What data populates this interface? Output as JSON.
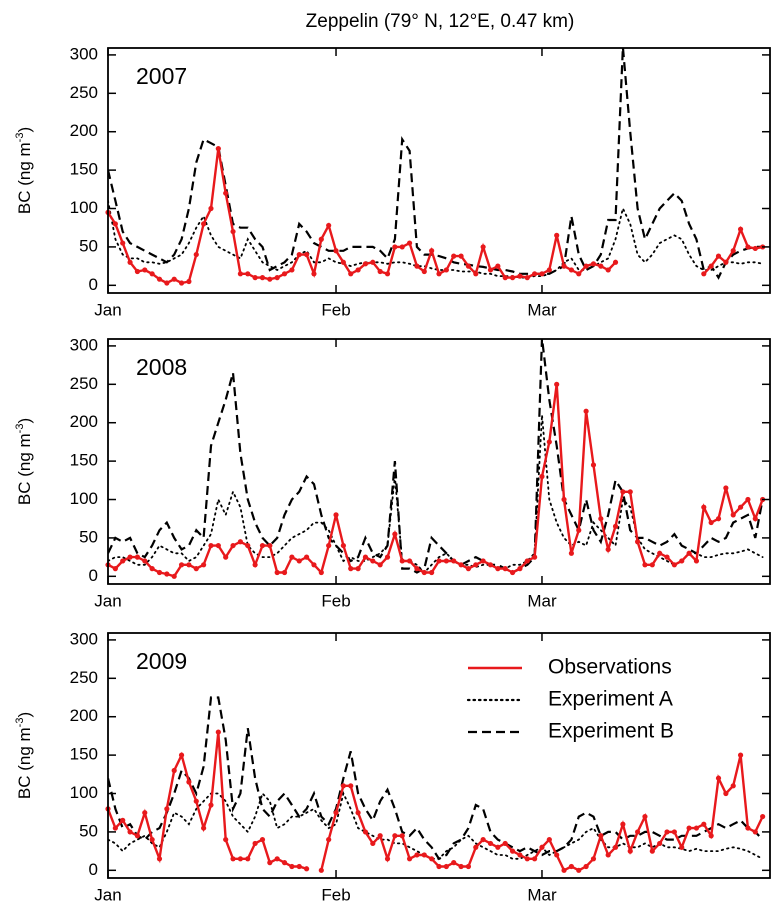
{
  "chart_data": [
    {
      "type": "line",
      "title": "Zeppelin (79° N, 12°E, 0.47 km)",
      "annotation": "2007",
      "ylabel": [
        "BC (ng m",
        "-3",
        ")"
      ],
      "x": [
        0,
        1,
        2,
        3,
        4,
        5,
        6,
        7,
        8,
        9,
        10,
        11,
        12,
        13,
        14,
        15,
        16,
        17,
        18,
        19,
        20,
        21,
        22,
        23,
        24,
        25,
        26,
        27,
        28,
        29,
        30,
        31,
        32,
        33,
        34,
        35,
        36,
        37,
        38,
        39,
        40,
        41,
        42,
        43,
        44,
        45,
        46,
        47,
        48,
        49,
        50,
        51,
        52,
        53,
        54,
        55,
        56,
        57,
        58,
        59,
        60,
        61,
        62,
        63,
        64,
        65,
        66,
        67,
        68,
        69,
        70,
        71,
        72,
        73,
        74,
        75,
        76,
        77,
        78,
        79,
        80,
        81,
        82,
        83,
        84,
        85,
        86,
        87,
        88,
        89
      ],
      "xlim": [
        0,
        90
      ],
      "ylim": [
        -10,
        309
      ],
      "xticks": [
        {
          "value": 0,
          "label": "Jan"
        },
        {
          "value": 31,
          "label": "Feb"
        },
        {
          "value": 59,
          "label": "Mar"
        }
      ],
      "yticks": [
        0,
        50,
        100,
        150,
        200,
        250,
        300
      ],
      "series": [
        {
          "color": "#e8191c",
          "style": "solid",
          "marker": true,
          "values": [
            95,
            80,
            55,
            30,
            18,
            20,
            15,
            8,
            3,
            8,
            3,
            5,
            40,
            80,
            100,
            178,
            120,
            70,
            15,
            15,
            10,
            10,
            8,
            10,
            15,
            20,
            40,
            40,
            15,
            60,
            78,
            45,
            30,
            15,
            20,
            28,
            30,
            18,
            15,
            50,
            50,
            55,
            25,
            18,
            45,
            15,
            20,
            38,
            38,
            25,
            15,
            50,
            20,
            25,
            10,
            10,
            12,
            10,
            15,
            15,
            20,
            65,
            25,
            20,
            15,
            25,
            28,
            25,
            20,
            30,
            null,
            null,
            null,
            null,
            null,
            null,
            null,
            null,
            null,
            null,
            null,
            15,
            25,
            38,
            30,
            45,
            73,
            50,
            48,
            50
          ]
        },
        {
          "color": "#000000",
          "style": "dotted",
          "marker": false,
          "values": [
            110,
            60,
            40,
            35,
            35,
            30,
            30,
            28,
            30,
            35,
            40,
            55,
            75,
            90,
            65,
            50,
            45,
            40,
            35,
            60,
            45,
            30,
            25,
            20,
            25,
            30,
            40,
            45,
            30,
            30,
            35,
            30,
            28,
            25,
            28,
            30,
            30,
            30,
            28,
            30,
            30,
            28,
            25,
            25,
            22,
            20,
            20,
            20,
            18,
            18,
            18,
            15,
            15,
            12,
            12,
            12,
            10,
            10,
            12,
            12,
            15,
            20,
            30,
            35,
            20,
            20,
            25,
            30,
            35,
            60,
            100,
            80,
            40,
            30,
            40,
            55,
            60,
            65,
            60,
            40,
            25,
            20,
            20,
            25,
            30,
            30,
            28,
            30,
            30,
            28
          ]
        },
        {
          "color": "#000000",
          "style": "dashed",
          "marker": false,
          "values": [
            150,
            110,
            70,
            55,
            50,
            45,
            40,
            35,
            30,
            40,
            60,
            100,
            160,
            190,
            185,
            180,
            130,
            80,
            75,
            75,
            60,
            50,
            20,
            25,
            30,
            40,
            80,
            70,
            55,
            50,
            45,
            45,
            45,
            50,
            50,
            50,
            50,
            45,
            35,
            60,
            190,
            175,
            50,
            40,
            40,
            38,
            35,
            30,
            28,
            27,
            25,
            24,
            22,
            20,
            20,
            18,
            15,
            15,
            15,
            15,
            15,
            20,
            25,
            90,
            40,
            20,
            25,
            40,
            85,
            85,
            310,
            200,
            100,
            60,
            80,
            100,
            110,
            120,
            110,
            80,
            60,
            20,
            25,
            10,
            30,
            40,
            45,
            48,
            50,
            50
          ]
        }
      ]
    },
    {
      "type": "line",
      "annotation": "2008",
      "ylabel": [
        "BC (ng m",
        "-3",
        ")"
      ],
      "x": [
        0,
        1,
        2,
        3,
        4,
        5,
        6,
        7,
        8,
        9,
        10,
        11,
        12,
        13,
        14,
        15,
        16,
        17,
        18,
        19,
        20,
        21,
        22,
        23,
        24,
        25,
        26,
        27,
        28,
        29,
        30,
        31,
        32,
        33,
        34,
        35,
        36,
        37,
        38,
        39,
        40,
        41,
        42,
        43,
        44,
        45,
        46,
        47,
        48,
        49,
        50,
        51,
        52,
        53,
        54,
        55,
        56,
        57,
        58,
        59,
        60,
        61,
        62,
        63,
        64,
        65,
        66,
        67,
        68,
        69,
        70,
        71,
        72,
        73,
        74,
        75,
        76,
        77,
        78,
        79,
        80,
        81,
        82,
        83,
        84,
        85,
        86,
        87,
        88,
        89
      ],
      "xlim": [
        0,
        90
      ],
      "ylim": [
        -10,
        309
      ],
      "xticks": [
        {
          "value": 0,
          "label": "Jan"
        },
        {
          "value": 31,
          "label": "Feb"
        },
        {
          "value": 59,
          "label": "Mar"
        }
      ],
      "yticks": [
        0,
        50,
        100,
        150,
        200,
        250,
        300
      ],
      "series": [
        {
          "color": "#e8191c",
          "style": "solid",
          "marker": true,
          "values": [
            15,
            10,
            20,
            25,
            25,
            20,
            10,
            5,
            3,
            0,
            15,
            15,
            10,
            15,
            40,
            40,
            25,
            40,
            45,
            40,
            15,
            40,
            40,
            5,
            5,
            25,
            20,
            25,
            15,
            5,
            40,
            80,
            40,
            10,
            10,
            25,
            20,
            15,
            25,
            55,
            20,
            20,
            10,
            5,
            5,
            20,
            20,
            20,
            15,
            10,
            15,
            20,
            15,
            10,
            10,
            5,
            10,
            20,
            25,
            130,
            175,
            250,
            100,
            30,
            60,
            215,
            145,
            75,
            35,
            65,
            110,
            110,
            45,
            15,
            15,
            30,
            25,
            15,
            20,
            30,
            20,
            90,
            70,
            75,
            115,
            80,
            90,
            100,
            75,
            100
          ]
        },
        {
          "color": "#000000",
          "style": "dotted",
          "marker": false,
          "values": [
            20,
            25,
            25,
            20,
            15,
            15,
            25,
            40,
            35,
            30,
            30,
            20,
            25,
            40,
            55,
            100,
            80,
            110,
            90,
            40,
            30,
            25,
            25,
            30,
            40,
            50,
            55,
            60,
            70,
            70,
            60,
            40,
            20,
            25,
            20,
            20,
            25,
            30,
            40,
            130,
            20,
            20,
            15,
            5,
            15,
            25,
            30,
            20,
            15,
            15,
            12,
            15,
            15,
            12,
            10,
            15,
            15,
            20,
            30,
            210,
            100,
            70,
            50,
            40,
            45,
            40,
            70,
            60,
            50,
            40,
            100,
            90,
            50,
            35,
            30,
            25,
            20,
            15,
            20,
            30,
            30,
            25,
            25,
            28,
            30,
            30,
            32,
            35,
            30,
            25
          ]
        },
        {
          "color": "#000000",
          "style": "dashed",
          "marker": false,
          "values": [
            30,
            50,
            45,
            50,
            30,
            25,
            40,
            60,
            70,
            50,
            35,
            40,
            60,
            50,
            170,
            200,
            230,
            265,
            160,
            100,
            70,
            50,
            40,
            50,
            80,
            100,
            110,
            130,
            120,
            80,
            50,
            40,
            30,
            20,
            25,
            50,
            30,
            25,
            40,
            150,
            10,
            10,
            5,
            10,
            50,
            40,
            30,
            20,
            15,
            20,
            25,
            20,
            15,
            15,
            10,
            5,
            10,
            15,
            25,
            310,
            230,
            170,
            100,
            80,
            60,
            100,
            60,
            45,
            80,
            125,
            110,
            60,
            50,
            50,
            45,
            40,
            45,
            55,
            40,
            35,
            30,
            40,
            50,
            45,
            50,
            70,
            75,
            80,
            50,
            100
          ]
        }
      ]
    },
    {
      "type": "line",
      "annotation": "2009",
      "legend": "upper right",
      "ylabel": [
        "BC (ng m",
        "-3",
        ")"
      ],
      "x": [
        0,
        1,
        2,
        3,
        4,
        5,
        6,
        7,
        8,
        9,
        10,
        11,
        12,
        13,
        14,
        15,
        16,
        17,
        18,
        19,
        20,
        21,
        22,
        23,
        24,
        25,
        26,
        27,
        28,
        29,
        30,
        31,
        32,
        33,
        34,
        35,
        36,
        37,
        38,
        39,
        40,
        41,
        42,
        43,
        44,
        45,
        46,
        47,
        48,
        49,
        50,
        51,
        52,
        53,
        54,
        55,
        56,
        57,
        58,
        59,
        60,
        61,
        62,
        63,
        64,
        65,
        66,
        67,
        68,
        69,
        70,
        71,
        72,
        73,
        74,
        75,
        76,
        77,
        78,
        79,
        80,
        81,
        82,
        83,
        84,
        85,
        86,
        87,
        88,
        89
      ],
      "xlim": [
        0,
        90
      ],
      "ylim": [
        -10,
        309
      ],
      "xticks": [
        {
          "value": 0,
          "label": "Jan"
        },
        {
          "value": 31,
          "label": "Feb"
        },
        {
          "value": 59,
          "label": "Mar"
        }
      ],
      "yticks": [
        0,
        50,
        100,
        150,
        200,
        250,
        300
      ],
      "series": [
        {
          "name": "Observations",
          "color": "#e8191c",
          "style": "solid",
          "marker": true,
          "values": [
            80,
            55,
            65,
            50,
            45,
            75,
            40,
            15,
            80,
            130,
            150,
            115,
            90,
            55,
            85,
            180,
            40,
            15,
            15,
            15,
            35,
            40,
            10,
            15,
            10,
            5,
            5,
            2,
            null,
            0,
            40,
            75,
            110,
            110,
            75,
            50,
            35,
            45,
            15,
            45,
            45,
            15,
            20,
            20,
            15,
            5,
            5,
            10,
            5,
            5,
            30,
            40,
            35,
            30,
            35,
            25,
            20,
            15,
            15,
            30,
            40,
            20,
            0,
            5,
            0,
            5,
            15,
            45,
            20,
            30,
            60,
            25,
            50,
            70,
            25,
            35,
            50,
            50,
            30,
            55,
            55,
            60,
            45,
            120,
            100,
            110,
            150,
            55,
            50,
            70
          ]
        },
        {
          "name": "Experiment A",
          "color": "#000000",
          "style": "dotted",
          "marker": false,
          "values": [
            40,
            35,
            25,
            35,
            40,
            45,
            35,
            30,
            50,
            75,
            70,
            60,
            80,
            90,
            100,
            100,
            90,
            70,
            60,
            50,
            70,
            100,
            90,
            55,
            60,
            70,
            70,
            75,
            80,
            65,
            55,
            60,
            100,
            80,
            55,
            50,
            45,
            40,
            40,
            35,
            35,
            30,
            25,
            20,
            15,
            15,
            25,
            30,
            40,
            45,
            35,
            30,
            25,
            20,
            20,
            15,
            15,
            20,
            25,
            30,
            20,
            25,
            30,
            35,
            40,
            50,
            55,
            40,
            30,
            30,
            35,
            30,
            30,
            35,
            30,
            35,
            30,
            30,
            28,
            25,
            28,
            25,
            25,
            25,
            28,
            30,
            28,
            25,
            20,
            15
          ]
        },
        {
          "name": "Experiment B",
          "color": "#000000",
          "style": "dashed",
          "marker": false,
          "values": [
            120,
            80,
            55,
            60,
            45,
            40,
            50,
            55,
            75,
            100,
            130,
            120,
            100,
            135,
            225,
            225,
            170,
            80,
            100,
            185,
            120,
            80,
            70,
            90,
            100,
            85,
            70,
            80,
            100,
            70,
            60,
            80,
            120,
            155,
            100,
            80,
            65,
            90,
            105,
            80,
            50,
            45,
            55,
            40,
            30,
            15,
            20,
            35,
            40,
            55,
            85,
            80,
            50,
            40,
            35,
            30,
            25,
            30,
            25,
            20,
            25,
            25,
            30,
            40,
            70,
            75,
            70,
            45,
            50,
            50,
            40,
            45,
            45,
            50,
            50,
            45,
            40,
            40,
            45,
            45,
            45,
            50,
            55,
            60,
            55,
            60,
            65,
            55,
            50,
            40
          ]
        }
      ]
    }
  ]
}
